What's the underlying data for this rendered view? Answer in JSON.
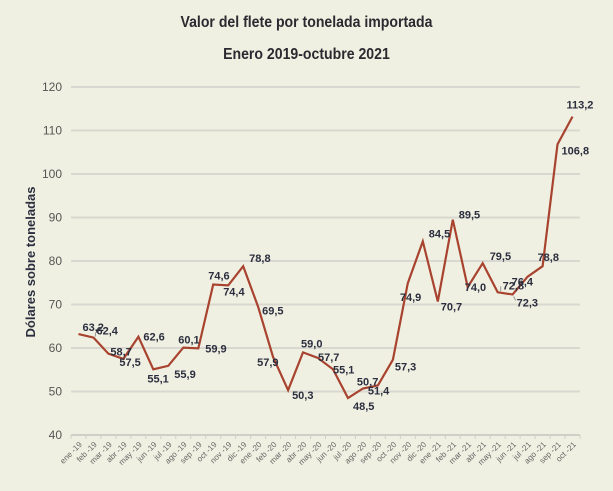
{
  "chart_data": {
    "type": "line",
    "title": "Valor del flete por tonelada importada",
    "subtitle": "Enero 2019-octubre 2021",
    "xlabel": "",
    "ylabel": "Dólares sobre toneladas",
    "ylim": [
      40,
      120
    ],
    "yticks": [
      40,
      50,
      60,
      70,
      80,
      90,
      100,
      110,
      120
    ],
    "grid": true,
    "legend": "none",
    "line_color": "#a8432f",
    "categories": [
      "ene -19",
      "feb -19",
      "mar -19",
      "abr -19",
      "may -19",
      "jun -19",
      "jul -19",
      "ago -19",
      "sep -19",
      "oct -19",
      "nov -19",
      "dic -19",
      "ene -20",
      "feb -20",
      "mar -20",
      "abr -20",
      "may -20",
      "jun -20",
      "jul -20",
      "ago -20",
      "sep -20",
      "oct -20",
      "nov -20",
      "dic -20",
      "ene -21",
      "feb -21",
      "mar -21",
      "abr -21",
      "may -21",
      "jun -21",
      "jul -21",
      "ago -21",
      "sep -21",
      "oct -21"
    ],
    "series": [
      {
        "name": "Valor del flete por tonelada importada",
        "values": [
          63.2,
          62.4,
          58.7,
          57.5,
          62.6,
          55.1,
          55.9,
          60.1,
          59.9,
          74.6,
          74.4,
          78.8,
          69.5,
          57.9,
          50.3,
          59.0,
          57.7,
          55.1,
          48.5,
          50.7,
          51.4,
          57.3,
          74.9,
          84.5,
          70.7,
          89.5,
          74.0,
          79.5,
          72.8,
          72.3,
          76.4,
          78.8,
          106.8,
          113.2
        ],
        "labels": [
          "63,2",
          "62,4",
          "58,7",
          "57,5",
          "62,6",
          "55,1",
          "55,9",
          "60,1",
          "59,9",
          "74,6",
          "74,4",
          "78,8",
          "69,5",
          "57,9",
          "50,3",
          "59,0",
          "57,7",
          "55,1",
          "48,5",
          "50,7",
          "51,4",
          "57,3",
          "74,9",
          "84,5",
          "70,7",
          "89,5",
          "74,0",
          "79,5",
          "72,8",
          "72,3",
          "76,4",
          "78,8",
          "106,8",
          "113,2"
        ]
      }
    ]
  }
}
